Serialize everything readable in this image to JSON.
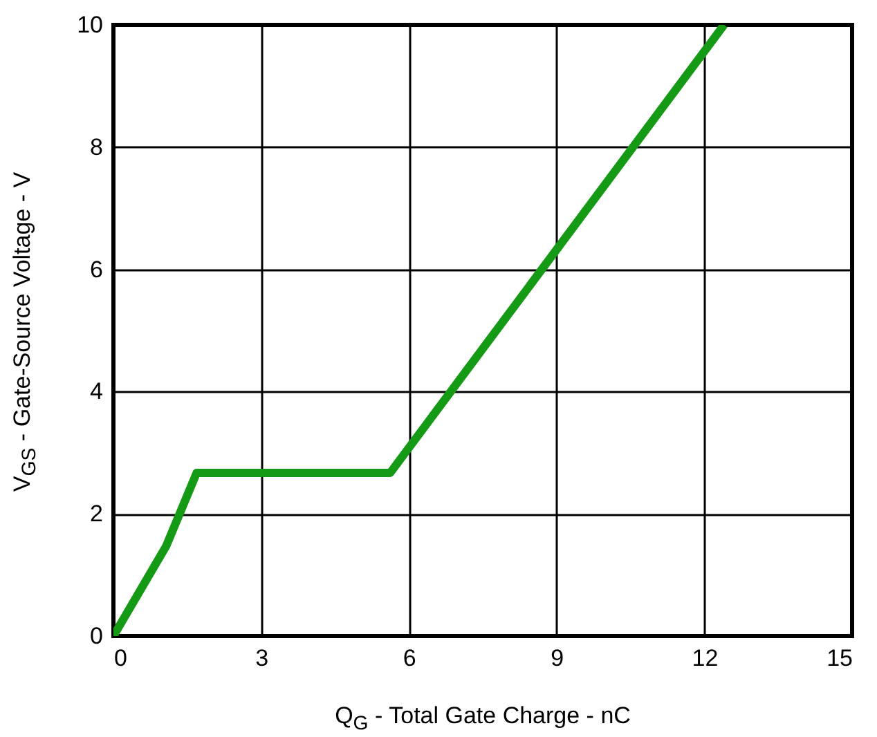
{
  "chart_data": {
    "type": "line",
    "xlabel": "Q$_{G}$ - Total Gate Charge - nC",
    "ylabel": "V$_{GS}$ - Gate-Source Voltage - V",
    "x": [
      0,
      1.07,
      1.69,
      5.62,
      12.4
    ],
    "series": [
      {
        "color": "#159a15",
        "values": [
          0,
          1.47,
          2.67,
          2.67,
          10
        ]
      }
    ],
    "xlim": [
      0,
      15
    ],
    "xticks": [
      0,
      3,
      6,
      9,
      12,
      15
    ],
    "ylim": [
      0,
      10
    ],
    "yticks": [
      0,
      2,
      4,
      6,
      8,
      10
    ],
    "grid": true
  }
}
